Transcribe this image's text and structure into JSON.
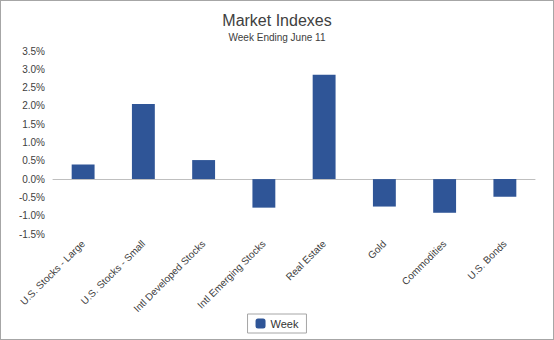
{
  "chart_data": {
    "type": "bar",
    "title": "Market Indexes",
    "subtitle": "Week Ending June 11",
    "categories": [
      "U.S. Stocks - Large",
      "U.S. Stocks - Small",
      "Intl Developed Stocks",
      "Intl Emerging Stocks",
      "Real Estate",
      "Gold",
      "Commodities",
      "U.S. Bonds"
    ],
    "series": [
      {
        "name": "Week",
        "color": "#2f5597",
        "values": [
          0.4,
          2.05,
          0.52,
          -0.78,
          2.85,
          -0.75,
          -0.92,
          -0.48
        ]
      }
    ],
    "ylim": [
      -1.5,
      3.5
    ],
    "yticks": [
      {
        "value": -1.5,
        "label": "-1.5%"
      },
      {
        "value": -1.0,
        "label": "-1.0%"
      },
      {
        "value": -0.5,
        "label": "-0.5%"
      },
      {
        "value": 0,
        "label": "0.0%"
      },
      {
        "value": 0.5,
        "label": "0.5%"
      },
      {
        "value": 1.0,
        "label": "1.0%"
      },
      {
        "value": 1.5,
        "label": "1.5%"
      },
      {
        "value": 2.0,
        "label": "2.0%"
      },
      {
        "value": 2.5,
        "label": "2.5%"
      },
      {
        "value": 3.0,
        "label": "3.0%"
      },
      {
        "value": 3.5,
        "label": "3.5%"
      }
    ],
    "grid": false,
    "legend": "bottom"
  }
}
